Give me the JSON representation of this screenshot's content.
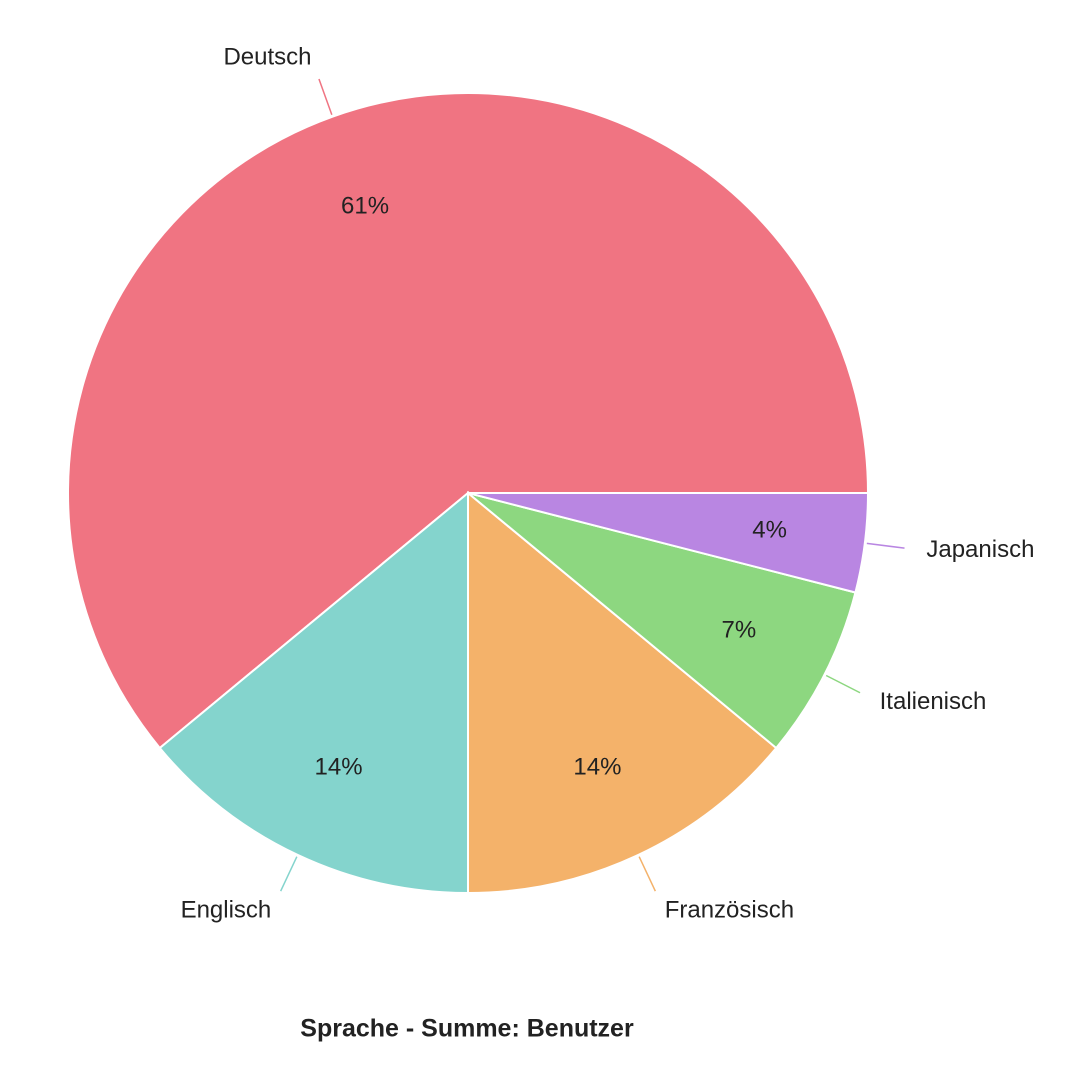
{
  "chart_data": {
    "type": "pie",
    "title": "Sprache - Summe: Benutzer",
    "categories": [
      "Deutsch",
      "Englisch",
      "Französisch",
      "Italienisch",
      "Japanisch"
    ],
    "values": [
      61,
      14,
      14,
      7,
      4
    ],
    "value_labels": [
      "61%",
      "14%",
      "14%",
      "7%",
      "4%"
    ],
    "colors": [
      "#f07482",
      "#84d4cd",
      "#f4b26a",
      "#8dd780",
      "#b986e2"
    ]
  }
}
